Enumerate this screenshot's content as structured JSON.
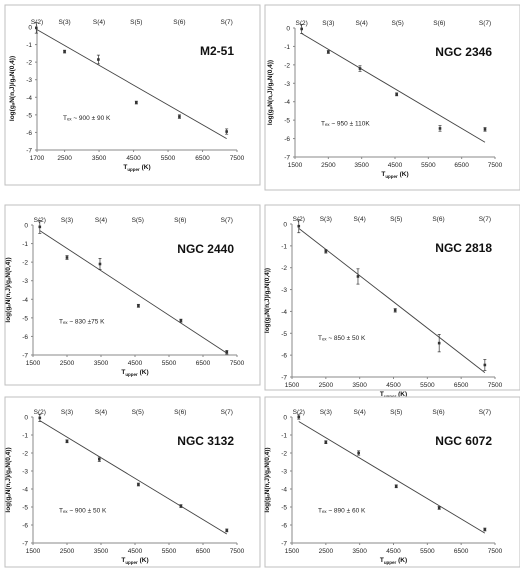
{
  "chart_data": [
    {
      "type": "scatter",
      "title": "M2-51",
      "xlabel": "T",
      "xlabel_sub": "upper",
      "xlabel_unit": "(K)",
      "ylabel": "log(gₐN(n,J)/gₐN(0,4))",
      "xlim": [
        1700,
        7500
      ],
      "ylim": [
        -7,
        0
      ],
      "xticks": [
        1700,
        2500,
        3500,
        4500,
        5500,
        6500,
        7500
      ],
      "yticks": [
        0,
        -1,
        -2,
        -3,
        -4,
        -5,
        -6,
        -7
      ],
      "top_labels": [
        {
          "text": "S(2)",
          "x": 1700
        },
        {
          "text": "S(3)",
          "x": 2500
        },
        {
          "text": "S(4)",
          "x": 3500
        },
        {
          "text": "S(5)",
          "x": 4580
        },
        {
          "text": "S(6)",
          "x": 5830
        },
        {
          "text": "S(7)",
          "x": 7200
        }
      ],
      "points": [
        {
          "x": 1680,
          "y": -0.05,
          "err": 0.3
        },
        {
          "x": 2500,
          "y": -1.4,
          "err": 0.08
        },
        {
          "x": 3480,
          "y": -1.85,
          "err": 0.25
        },
        {
          "x": 4580,
          "y": -4.3,
          "err": 0.08
        },
        {
          "x": 5830,
          "y": -5.1,
          "err": 0.1
        },
        {
          "x": 7200,
          "y": -5.95,
          "err": 0.15
        }
      ],
      "fit": {
        "x": [
          1700,
          7200
        ],
        "y": [
          -0.15,
          -6.35
        ]
      },
      "annotation": "Tₑₓ ~ 900 ± 90 K"
    },
    {
      "type": "scatter",
      "title": "NGC 2346",
      "xlabel": "T",
      "xlabel_sub": "upper",
      "xlabel_unit": "(K)",
      "ylabel": "log(gₐN(n,J)/gₐN(0,4))",
      "xlim": [
        1500,
        7500
      ],
      "ylim": [
        -7,
        0
      ],
      "xticks": [
        1500,
        2500,
        3500,
        4500,
        5500,
        6500,
        7500
      ],
      "yticks": [
        0,
        -1,
        -2,
        -3,
        -4,
        -5,
        -6,
        -7
      ],
      "top_labels": [
        {
          "text": "S(2)",
          "x": 1700
        },
        {
          "text": "S(3)",
          "x": 2500
        },
        {
          "text": "S(4)",
          "x": 3500
        },
        {
          "text": "S(5)",
          "x": 4580
        },
        {
          "text": "S(6)",
          "x": 5830
        },
        {
          "text": "S(7)",
          "x": 7200
        }
      ],
      "points": [
        {
          "x": 1700,
          "y": -0.05,
          "err": 0.25
        },
        {
          "x": 2500,
          "y": -1.3,
          "err": 0.08
        },
        {
          "x": 3450,
          "y": -2.2,
          "err": 0.15
        },
        {
          "x": 4550,
          "y": -3.6,
          "err": 0.08
        },
        {
          "x": 5850,
          "y": -5.45,
          "err": 0.15
        },
        {
          "x": 7200,
          "y": -5.5,
          "err": 0.1
        }
      ],
      "fit": {
        "x": [
          1700,
          7200
        ],
        "y": [
          -0.3,
          -6.2
        ]
      },
      "annotation": "Tₑₓ ~ 950 ± 110K"
    },
    {
      "type": "scatter",
      "title": "NGC 2440",
      "xlabel": "T",
      "xlabel_sub": "upper",
      "xlabel_unit": "(K)",
      "ylabel": "log(gₐN(n,J)/gₐN(0,4))",
      "xlim": [
        1500,
        7500
      ],
      "ylim": [
        -7,
        0
      ],
      "xticks": [
        1500,
        2500,
        3500,
        4500,
        5500,
        6500,
        7500
      ],
      "yticks": [
        0,
        -1,
        -2,
        -3,
        -4,
        -5,
        -6,
        -7
      ],
      "top_labels": [
        {
          "text": "S(2)",
          "x": 1700
        },
        {
          "text": "S(3)",
          "x": 2500
        },
        {
          "text": "S(4)",
          "x": 3500
        },
        {
          "text": "S(5)",
          "x": 4580
        },
        {
          "text": "S(6)",
          "x": 5830
        },
        {
          "text": "S(7)",
          "x": 7200
        }
      ],
      "points": [
        {
          "x": 1700,
          "y": -0.1,
          "err": 0.35
        },
        {
          "x": 2500,
          "y": -1.75,
          "err": 0.1
        },
        {
          "x": 3470,
          "y": -2.1,
          "err": 0.3
        },
        {
          "x": 4600,
          "y": -4.35,
          "err": 0.08
        },
        {
          "x": 5850,
          "y": -5.15,
          "err": 0.08
        },
        {
          "x": 7200,
          "y": -6.85,
          "err": 0.1
        }
      ],
      "fit": {
        "x": [
          1700,
          7200
        ],
        "y": [
          -0.3,
          -6.9
        ]
      },
      "annotation": "Tₑₓ ~ 830 ±75 K"
    },
    {
      "type": "scatter",
      "title": "NGC 2818",
      "xlabel": "T",
      "xlabel_sub": "upper",
      "xlabel_unit": "(K)",
      "ylabel": "log(gₐN(n,J)/gₐN(0,4))",
      "xlim": [
        1500,
        7500
      ],
      "ylim": [
        -7,
        0
      ],
      "xticks": [
        1500,
        2500,
        3500,
        4500,
        5500,
        6500,
        7500
      ],
      "yticks": [
        0,
        -1,
        -2,
        -3,
        -4,
        -5,
        -6,
        -7
      ],
      "top_labels": [
        {
          "text": "S(2)",
          "x": 1700
        },
        {
          "text": "S(3)",
          "x": 2500
        },
        {
          "text": "S(4)",
          "x": 3500
        },
        {
          "text": "S(5)",
          "x": 4580
        },
        {
          "text": "S(6)",
          "x": 5830
        },
        {
          "text": "S(7)",
          "x": 7200
        }
      ],
      "points": [
        {
          "x": 1700,
          "y": -0.1,
          "err": 0.3
        },
        {
          "x": 2500,
          "y": -1.25,
          "err": 0.08
        },
        {
          "x": 3450,
          "y": -2.4,
          "err": 0.35
        },
        {
          "x": 4550,
          "y": -3.95,
          "err": 0.08
        },
        {
          "x": 5850,
          "y": -5.45,
          "err": 0.4
        },
        {
          "x": 7200,
          "y": -6.45,
          "err": 0.25
        }
      ],
      "fit": {
        "x": [
          1700,
          7200
        ],
        "y": [
          -0.2,
          -6.8
        ]
      },
      "annotation": "Tₑₓ ~ 850 ± 50 K"
    },
    {
      "type": "scatter",
      "title": "NGC 3132",
      "xlabel": "T",
      "xlabel_sub": "upper",
      "xlabel_unit": "(K)",
      "ylabel": "log(gₐN(n,J)/gₐN(0,4))",
      "xlim": [
        1500,
        7500
      ],
      "ylim": [
        -7,
        0
      ],
      "xticks": [
        1500,
        2500,
        3500,
        4500,
        5500,
        6500,
        7500
      ],
      "yticks": [
        0,
        -1,
        -2,
        -3,
        -4,
        -5,
        -6,
        -7
      ],
      "top_labels": [
        {
          "text": "S(2)",
          "x": 1700
        },
        {
          "text": "S(3)",
          "x": 2500
        },
        {
          "text": "S(4)",
          "x": 3500
        },
        {
          "text": "S(5)",
          "x": 4580
        },
        {
          "text": "S(6)",
          "x": 5830
        },
        {
          "text": "S(7)",
          "x": 7200
        }
      ],
      "points": [
        {
          "x": 1700,
          "y": -0.05,
          "err": 0.2
        },
        {
          "x": 2500,
          "y": -1.35,
          "err": 0.08
        },
        {
          "x": 3450,
          "y": -2.35,
          "err": 0.12
        },
        {
          "x": 4600,
          "y": -3.75,
          "err": 0.08
        },
        {
          "x": 5850,
          "y": -4.95,
          "err": 0.08
        },
        {
          "x": 7200,
          "y": -6.3,
          "err": 0.08
        }
      ],
      "fit": {
        "x": [
          1700,
          7200
        ],
        "y": [
          -0.2,
          -6.5
        ]
      },
      "annotation": "Tₑₓ ~ 900 ± 50 K"
    },
    {
      "type": "scatter",
      "title": "NGC 6072",
      "xlabel": "T",
      "xlabel_sub": "upper",
      "xlabel_unit": "(K)",
      "ylabel": "log(gₐN(n,J)/gₐN(0,4))",
      "xlim": [
        1500,
        7500
      ],
      "ylim": [
        -7,
        0
      ],
      "xticks": [
        1500,
        2500,
        3500,
        4500,
        5500,
        6500,
        7500
      ],
      "yticks": [
        0,
        -1,
        -2,
        -3,
        -4,
        -5,
        -6,
        -7
      ],
      "top_labels": [
        {
          "text": "S(2)",
          "x": 1700
        },
        {
          "text": "S(3)",
          "x": 2500
        },
        {
          "text": "S(4)",
          "x": 3500
        },
        {
          "text": "S(5)",
          "x": 4580
        },
        {
          "text": "S(6)",
          "x": 5830
        },
        {
          "text": "S(7)",
          "x": 7200
        }
      ],
      "points": [
        {
          "x": 1700,
          "y": 0,
          "err": 0.12
        },
        {
          "x": 2500,
          "y": -1.4,
          "err": 0.08
        },
        {
          "x": 3470,
          "y": -2.0,
          "err": 0.12
        },
        {
          "x": 4580,
          "y": -3.85,
          "err": 0.08
        },
        {
          "x": 5850,
          "y": -5.05,
          "err": 0.08
        },
        {
          "x": 7200,
          "y": -6.25,
          "err": 0.08
        }
      ],
      "fit": {
        "x": [
          1700,
          7200
        ],
        "y": [
          -0.25,
          -6.45
        ]
      },
      "annotation": "Tₑₓ ~ 890 ± 60 K"
    }
  ]
}
